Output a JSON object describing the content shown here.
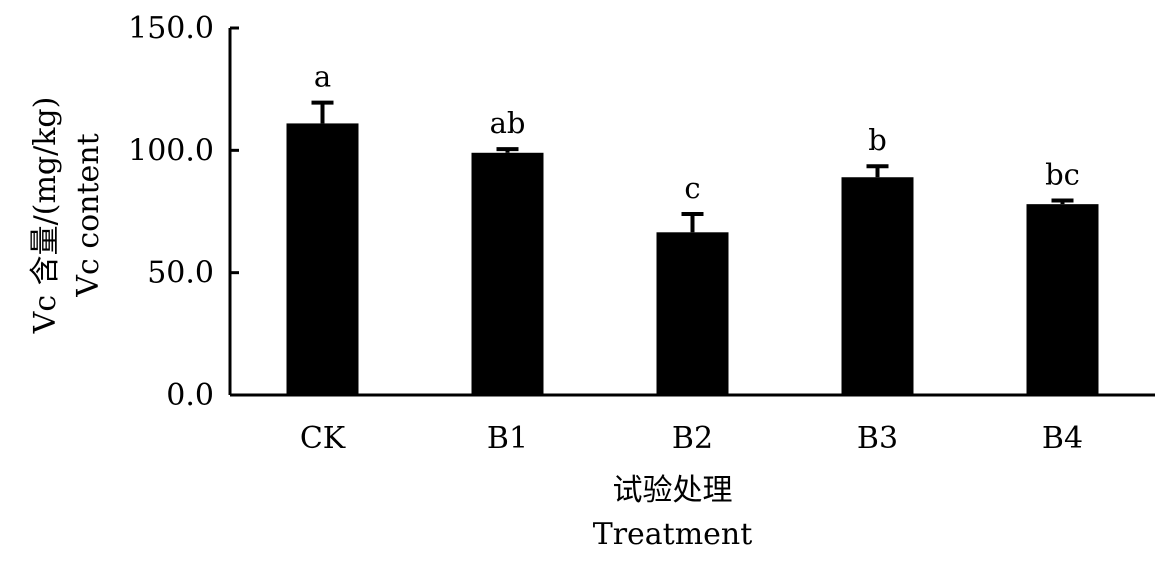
{
  "chart_data": {
    "type": "bar",
    "categories": [
      "CK",
      "B1",
      "B2",
      "B3",
      "B4"
    ],
    "values": [
      111.0,
      99.0,
      66.5,
      89.0,
      78.0
    ],
    "error_bars": [
      8.5,
      1.5,
      7.5,
      4.5,
      1.5
    ],
    "significance_labels": [
      "a",
      "ab",
      "c",
      "b",
      "bc"
    ],
    "xlabel": [
      "试验处理",
      "Treatment"
    ],
    "ylabel": [
      "Vc 含量/(mg/kg)",
      "Vc content"
    ],
    "ylim": [
      0,
      150
    ],
    "yticks": [
      0,
      50,
      100,
      150
    ],
    "ytick_labels": [
      "0.0",
      "50.0",
      "100.0",
      "150.0"
    ],
    "bar_color": "#000000",
    "grid": false
  }
}
